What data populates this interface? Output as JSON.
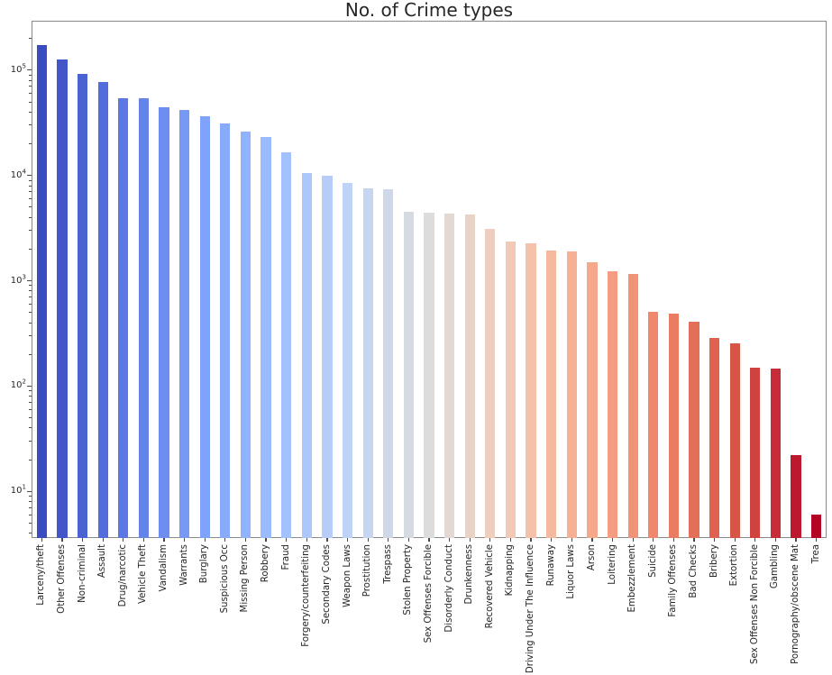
{
  "chart_data": {
    "type": "bar",
    "title": "No. of Crime types",
    "xlabel": "",
    "ylabel": "",
    "y_scale": "log",
    "ylim": [
      3.6,
      295000
    ],
    "grid": false,
    "legend": "none",
    "colormap": "coolwarm",
    "categories": [
      "Larceny/theft",
      "Other Offenses",
      "Non-criminal",
      "Assault",
      "Drug/narcotic",
      "Vehicle Theft",
      "Vandalism",
      "Warrants",
      "Burglary",
      "Suspicious Occ",
      "Missing Person",
      "Robbery",
      "Fraud",
      "Forgery/counterfeiting",
      "Secondary Codes",
      "Weapon Laws",
      "Prostitution",
      "Trespass",
      "Stolen Property",
      "Sex Offenses Forcible",
      "Disorderly Conduct",
      "Drunkenness",
      "Recovered Vehicle",
      "Kidnapping",
      "Driving Under The Influence",
      "Runaway",
      "Liquor Laws",
      "Arson",
      "Loitering",
      "Embezzlement",
      "Suicide",
      "Family Offenses",
      "Bad Checks",
      "Bribery",
      "Extortion",
      "Sex Offenses Non Forcible",
      "Gambling",
      "Pornography/obscene Mat",
      "Trea"
    ],
    "values": [
      174900,
      126182,
      92304,
      76876,
      53971,
      53781,
      44725,
      42214,
      36755,
      31414,
      25989,
      23000,
      16679,
      10609,
      9985,
      8555,
      7484,
      7326,
      4540,
      4388,
      4320,
      4280,
      3138,
      2341,
      2268,
      1946,
      1903,
      1513,
      1225,
      1166,
      508,
      491,
      406,
      289,
      256,
      148,
      146,
      22,
      6
    ],
    "bar_colors": [
      "#3b4cc0",
      "#4357c9",
      "#4b63d2",
      "#536edc",
      "#5b79e4",
      "#6484ea",
      "#6d8ef0",
      "#7699f5",
      "#7fa2fa",
      "#88aafb",
      "#91b3fd",
      "#9abbfe",
      "#a3c2fd",
      "#acc7fb",
      "#b5cdf8",
      "#bed3f6",
      "#c6d6f0",
      "#ced8e9",
      "#d5dae3",
      "#dddcdc",
      "#e3d8d2",
      "#e8d3c9",
      "#eecfbf",
      "#f2c9b5",
      "#f4c1aa",
      "#f5b99f",
      "#f6b195",
      "#f6a88a",
      "#f49d80",
      "#f19376",
      "#ef886c",
      "#ea7c62",
      "#e46f59",
      "#de624f",
      "#d75546",
      "#cf423e",
      "#c62d36",
      "#bd192e",
      "#b40426"
    ],
    "y_ticks": [
      {
        "base": "10",
        "exp": "1"
      },
      {
        "base": "10",
        "exp": "2"
      },
      {
        "base": "10",
        "exp": "3"
      },
      {
        "base": "10",
        "exp": "4"
      },
      {
        "base": "10",
        "exp": "5"
      }
    ],
    "y_minor_subs": [
      2,
      3,
      4,
      5,
      6,
      7,
      8,
      9
    ]
  },
  "style": {
    "background": "#ffffff",
    "spine_color": "#8a8a8a",
    "tick_color": "#4a4a4a",
    "tick_label_color": "#262626",
    "title_color": "#262626"
  }
}
